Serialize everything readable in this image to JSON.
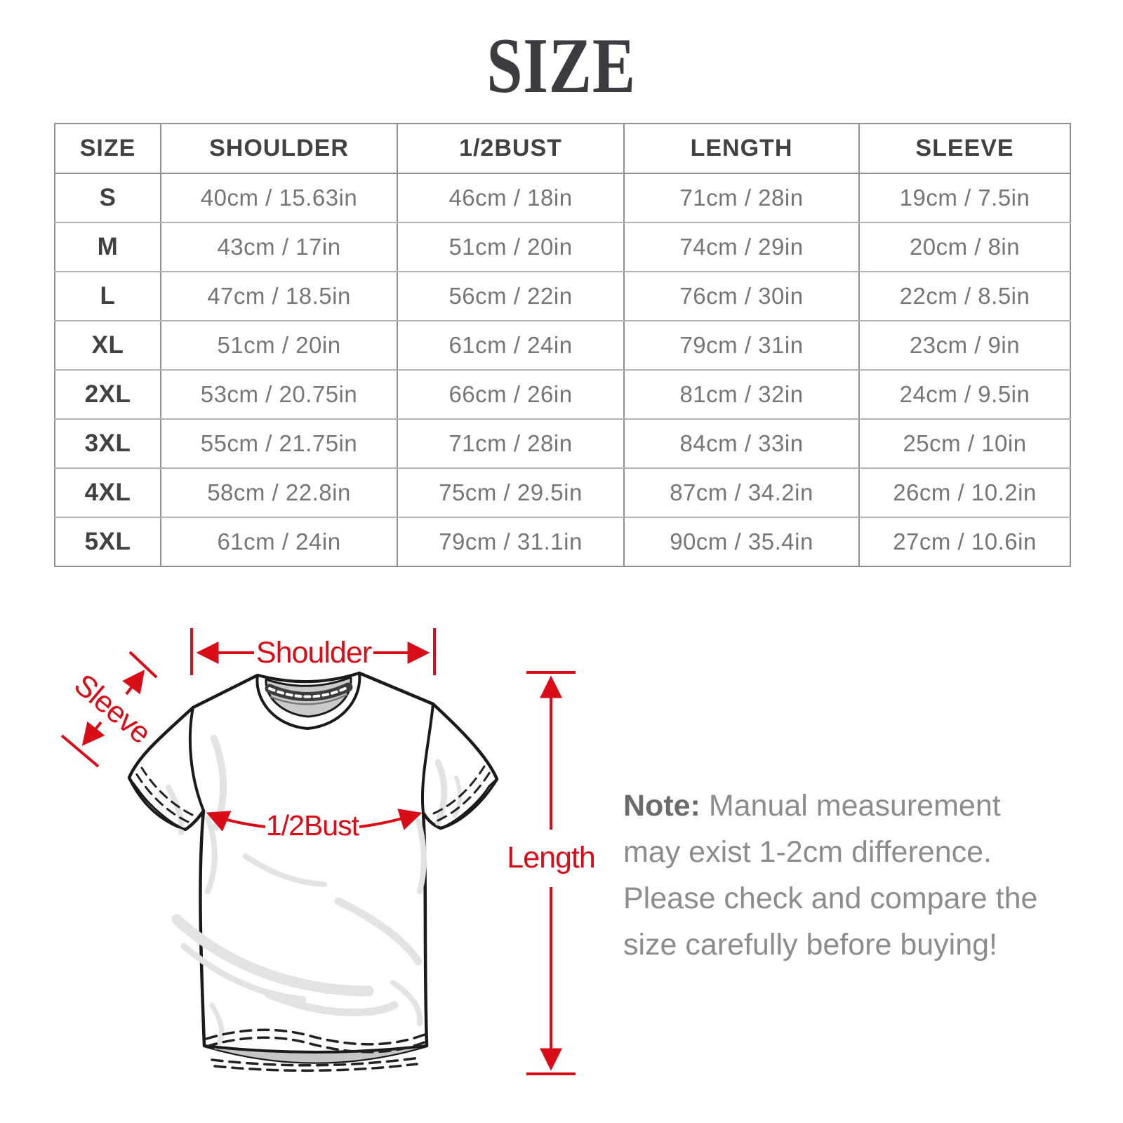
{
  "title": "SIZE",
  "colors": {
    "accent_red": "#d90d18",
    "title_gray": "#3b3b42",
    "cell_text_gray": "#767676"
  },
  "table": {
    "headers": [
      "SIZE",
      "SHOULDER",
      "1/2BUST",
      "LENGTH",
      "SLEEVE"
    ],
    "rows": [
      [
        "S",
        "40cm / 15.63in",
        "46cm / 18in",
        "71cm / 28in",
        "19cm / 7.5in"
      ],
      [
        "M",
        "43cm / 17in",
        "51cm / 20in",
        "74cm / 29in",
        "20cm / 8in"
      ],
      [
        "L",
        "47cm / 18.5in",
        "56cm / 22in",
        "76cm / 30in",
        "22cm / 8.5in"
      ],
      [
        "XL",
        "51cm / 20in",
        "61cm / 24in",
        "79cm / 31in",
        "23cm / 9in"
      ],
      [
        "2XL",
        "53cm / 20.75in",
        "66cm / 26in",
        "81cm / 32in",
        "24cm / 9.5in"
      ],
      [
        "3XL",
        "55cm / 21.75in",
        "71cm / 28in",
        "84cm / 33in",
        "25cm / 10in"
      ],
      [
        "4XL",
        "58cm / 22.8in",
        "75cm / 29.5in",
        "87cm / 34.2in",
        "26cm / 10.2in"
      ],
      [
        "5XL",
        "61cm / 24in",
        "79cm / 31.1in",
        "90cm / 35.4in",
        "27cm / 10.6in"
      ]
    ]
  },
  "diagram": {
    "labels": {
      "shoulder": "Shoulder",
      "sleeve": "Sleeve",
      "bust": "1/2Bust",
      "length": "Length"
    }
  },
  "note": {
    "prefix": "Note:",
    "body": " Manual measurement may exist 1-2cm difference. Please check and compare the size carefully before buying!"
  }
}
